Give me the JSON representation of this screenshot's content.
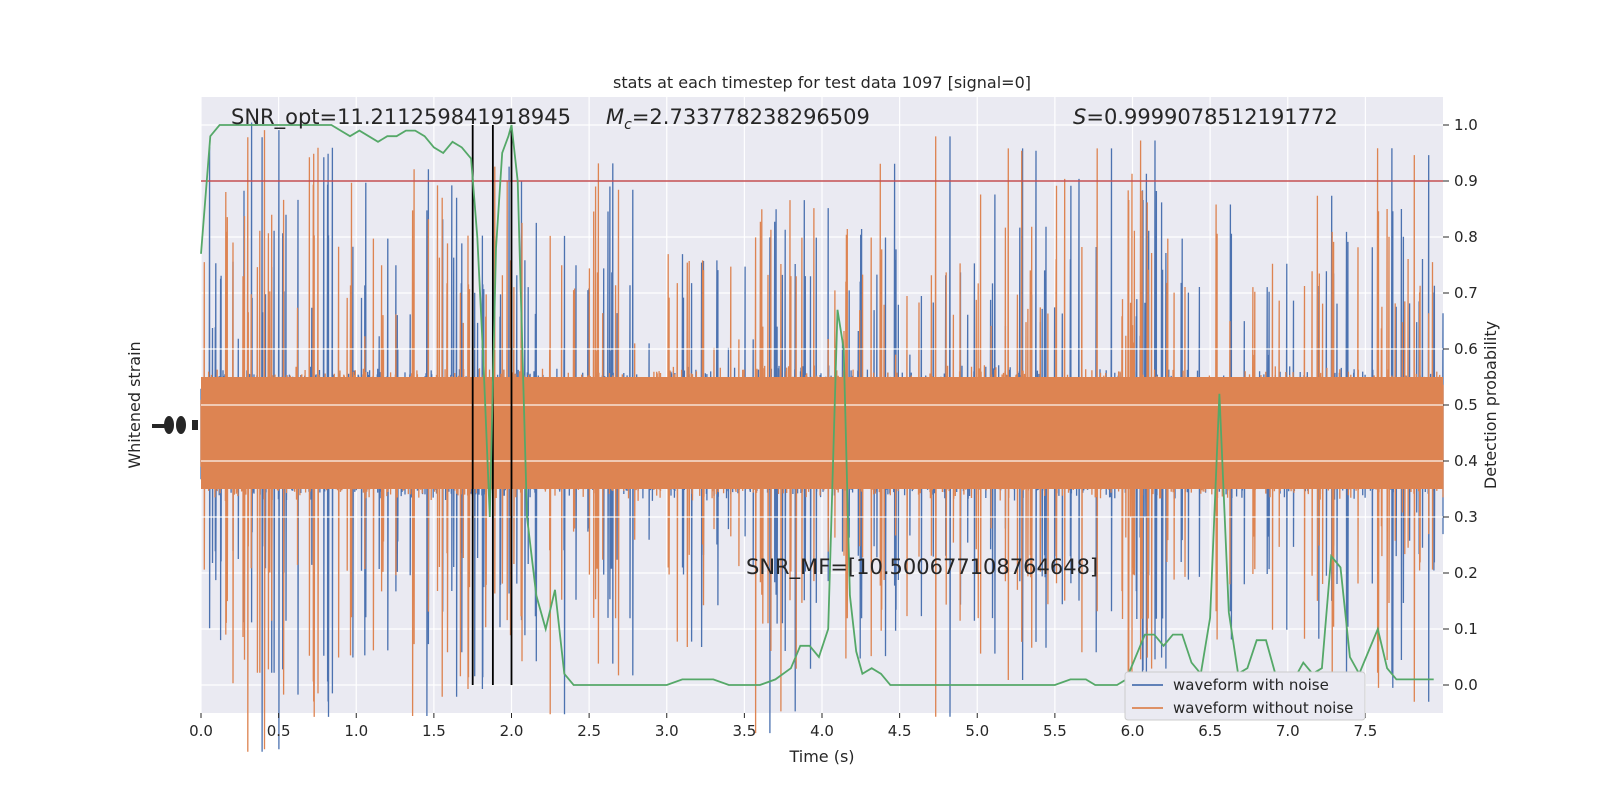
{
  "chart_data": {
    "type": "line",
    "title": "stats at each timestep for test data 1097 [signal=0]",
    "xlabel": "Time (s)",
    "ylabel_left": "Whitened strain",
    "ylabel_right": "Detection probability",
    "xlim": [
      0.0,
      8.0
    ],
    "ylim_right": [
      -0.05,
      1.05
    ],
    "x_ticks": [
      "0.0",
      "0.5",
      "1.0",
      "1.5",
      "2.0",
      "2.5",
      "3.0",
      "3.5",
      "4.0",
      "4.5",
      "5.0",
      "5.5",
      "6.0",
      "6.5",
      "7.0",
      "7.5"
    ],
    "y_ticks_right": [
      "0.0",
      "0.1",
      "0.2",
      "0.3",
      "0.4",
      "0.5",
      "0.6",
      "0.7",
      "0.8",
      "0.9",
      "1.0"
    ],
    "grid": true,
    "legend_position": "lower-right",
    "annotations": {
      "snr_opt": "SNR_opt=11.211259841918945",
      "mc_symbol": "M",
      "mc_subscript": "c",
      "mc_value": "=2.733778238296509",
      "s_symbol": "S",
      "s_value": "=0.9999078512191772",
      "snr_mf": "SNR_MF=[10.500677108764648]"
    },
    "threshold": 0.9,
    "vertical_lines_x": [
      1.75,
      1.88,
      2.0
    ],
    "series": [
      {
        "name": "waveform with noise",
        "color": "#4c72b0",
        "noise_level": 0.45
      },
      {
        "name": "waveform without noise",
        "color": "#dd8452",
        "noise_level": 0.45
      },
      {
        "color": "#55a868",
        "x": [
          0.0,
          0.06,
          0.12,
          0.18,
          0.24,
          0.3,
          0.36,
          0.42,
          0.48,
          0.54,
          0.6,
          0.66,
          0.72,
          0.78,
          0.84,
          0.9,
          0.96,
          1.02,
          1.08,
          1.14,
          1.2,
          1.26,
          1.32,
          1.38,
          1.44,
          1.5,
          1.56,
          1.62,
          1.68,
          1.74,
          1.78,
          1.82,
          1.86,
          1.9,
          1.94,
          1.98,
          2.0,
          2.04,
          2.1,
          2.16,
          2.22,
          2.28,
          2.34,
          2.4,
          2.46,
          2.5,
          2.6,
          2.7,
          2.8,
          2.9,
          3.0,
          3.1,
          3.2,
          3.3,
          3.4,
          3.5,
          3.6,
          3.7,
          3.8,
          3.86,
          3.92,
          3.98,
          4.04,
          4.1,
          4.14,
          4.18,
          4.22,
          4.26,
          4.32,
          4.38,
          4.44,
          4.5,
          4.6,
          4.7,
          4.8,
          4.9,
          5.0,
          5.1,
          5.2,
          5.3,
          5.4,
          5.5,
          5.6,
          5.7,
          5.76,
          5.82,
          5.9,
          5.96,
          6.02,
          6.08,
          6.14,
          6.2,
          6.26,
          6.32,
          6.38,
          6.44,
          6.5,
          6.56,
          6.62,
          6.68,
          6.74,
          6.8,
          6.86,
          6.92,
          6.98,
          7.04,
          7.1,
          7.16,
          7.22,
          7.28,
          7.34,
          7.4,
          7.46,
          7.52,
          7.58,
          7.64,
          7.7,
          7.76,
          7.82,
          7.88,
          7.94
        ],
        "values": [
          0.77,
          0.98,
          1.0,
          1.0,
          1.0,
          1.0,
          1.0,
          1.0,
          1.0,
          1.0,
          1.0,
          1.0,
          1.0,
          1.0,
          1.0,
          0.99,
          0.98,
          0.99,
          0.98,
          0.97,
          0.98,
          0.98,
          0.99,
          0.99,
          0.98,
          0.96,
          0.95,
          0.97,
          0.96,
          0.94,
          0.8,
          0.57,
          0.3,
          0.78,
          0.95,
          0.98,
          1.0,
          0.9,
          0.3,
          0.16,
          0.1,
          0.17,
          0.02,
          0.0,
          0.0,
          0.0,
          0.0,
          0.0,
          0.0,
          0.0,
          0.0,
          0.01,
          0.01,
          0.01,
          0.0,
          0.0,
          0.0,
          0.01,
          0.03,
          0.07,
          0.07,
          0.05,
          0.1,
          0.67,
          0.6,
          0.16,
          0.06,
          0.02,
          0.03,
          0.02,
          0.0,
          0.0,
          0.0,
          0.0,
          0.0,
          0.0,
          0.0,
          0.0,
          0.0,
          0.0,
          0.0,
          0.0,
          0.01,
          0.01,
          0.0,
          0.0,
          0.0,
          0.01,
          0.05,
          0.09,
          0.09,
          0.07,
          0.09,
          0.09,
          0.04,
          0.02,
          0.12,
          0.52,
          0.13,
          0.02,
          0.03,
          0.08,
          0.08,
          0.02,
          0.01,
          0.01,
          0.04,
          0.02,
          0.03,
          0.23,
          0.21,
          0.05,
          0.02,
          0.06,
          0.1,
          0.03,
          0.01,
          0.01,
          0.01,
          0.01,
          0.01
        ]
      }
    ]
  }
}
